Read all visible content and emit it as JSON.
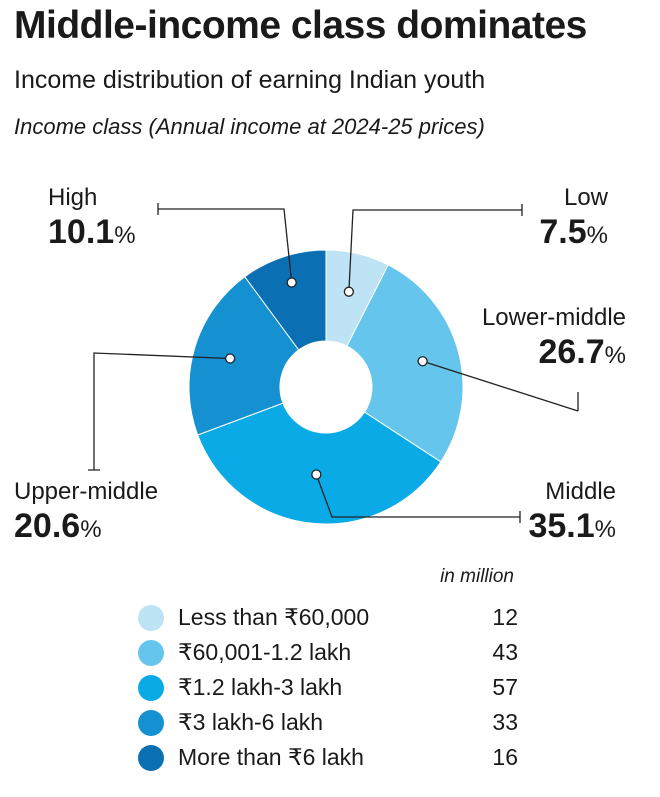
{
  "title": "Middle-income class dominates",
  "subtitle": "Income distribution of earning Indian youth",
  "note": "Income class (Annual income at 2024-25 prices)",
  "unit_note": "in million",
  "percent_sign": "%",
  "chart_data": {
    "type": "pie",
    "variant": "donut",
    "slices": [
      {
        "name": "Low",
        "value": 7.5,
        "color": "#bde3f5",
        "range": "Less than ₹60,000",
        "millions": 12
      },
      {
        "name": "Lower-middle",
        "value": 26.7,
        "color": "#66c5ec",
        "range": "₹60,001-1.2 lakh",
        "millions": 43
      },
      {
        "name": "Middle",
        "value": 35.1,
        "color": "#0aaae6",
        "range": "₹1.2 lakh-3 lakh",
        "millions": 57
      },
      {
        "name": "Upper-middle",
        "value": 20.6,
        "color": "#1590d1",
        "range": "₹3 lakh-6 lakh",
        "millions": 33
      },
      {
        "name": "High",
        "value": 10.1,
        "color": "#0b6fb3",
        "range": "More than ₹6 lakh",
        "millions": 16
      }
    ]
  }
}
